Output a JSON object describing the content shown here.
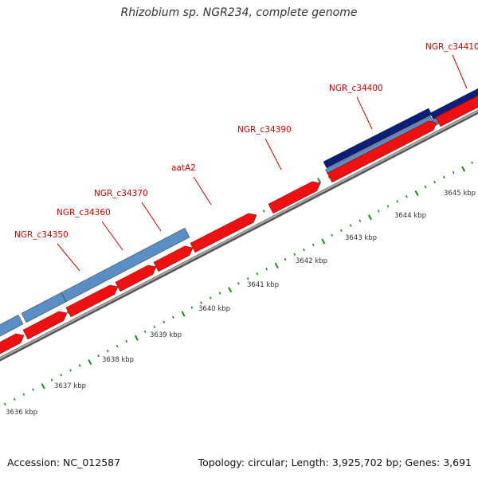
{
  "title": "Rhizobium sp. NGR234, complete genome",
  "colors": {
    "gene_label": "#cc0000",
    "cds_forward": "#5b8ec4",
    "cds_forward_dark": "#0b1f7a",
    "cds_reverse": "#ee1111",
    "backbone": "#888888",
    "tick": "#1a8a1a"
  },
  "genes": [
    {
      "name": "NGR_c34350"
    },
    {
      "name": "NGR_c34360"
    },
    {
      "name": "NGR_c34370"
    },
    {
      "name": "aatA2"
    },
    {
      "name": "NGR_c34390"
    },
    {
      "name": "NGR_c34400"
    },
    {
      "name": "NGR_c34410"
    }
  ],
  "kbp_labels": [
    "3636 kbp",
    "3637 kbp",
    "3638 kbp",
    "3639 kbp",
    "3640 kbp",
    "3641 kbp",
    "3642 kbp",
    "3643 kbp",
    "3644 kbp",
    "3645 kbp"
  ],
  "footer": {
    "accession": "Accession: NC_012587",
    "summary": "Topology: circular; Length: 3,925,702 bp; Genes: 3,691"
  }
}
